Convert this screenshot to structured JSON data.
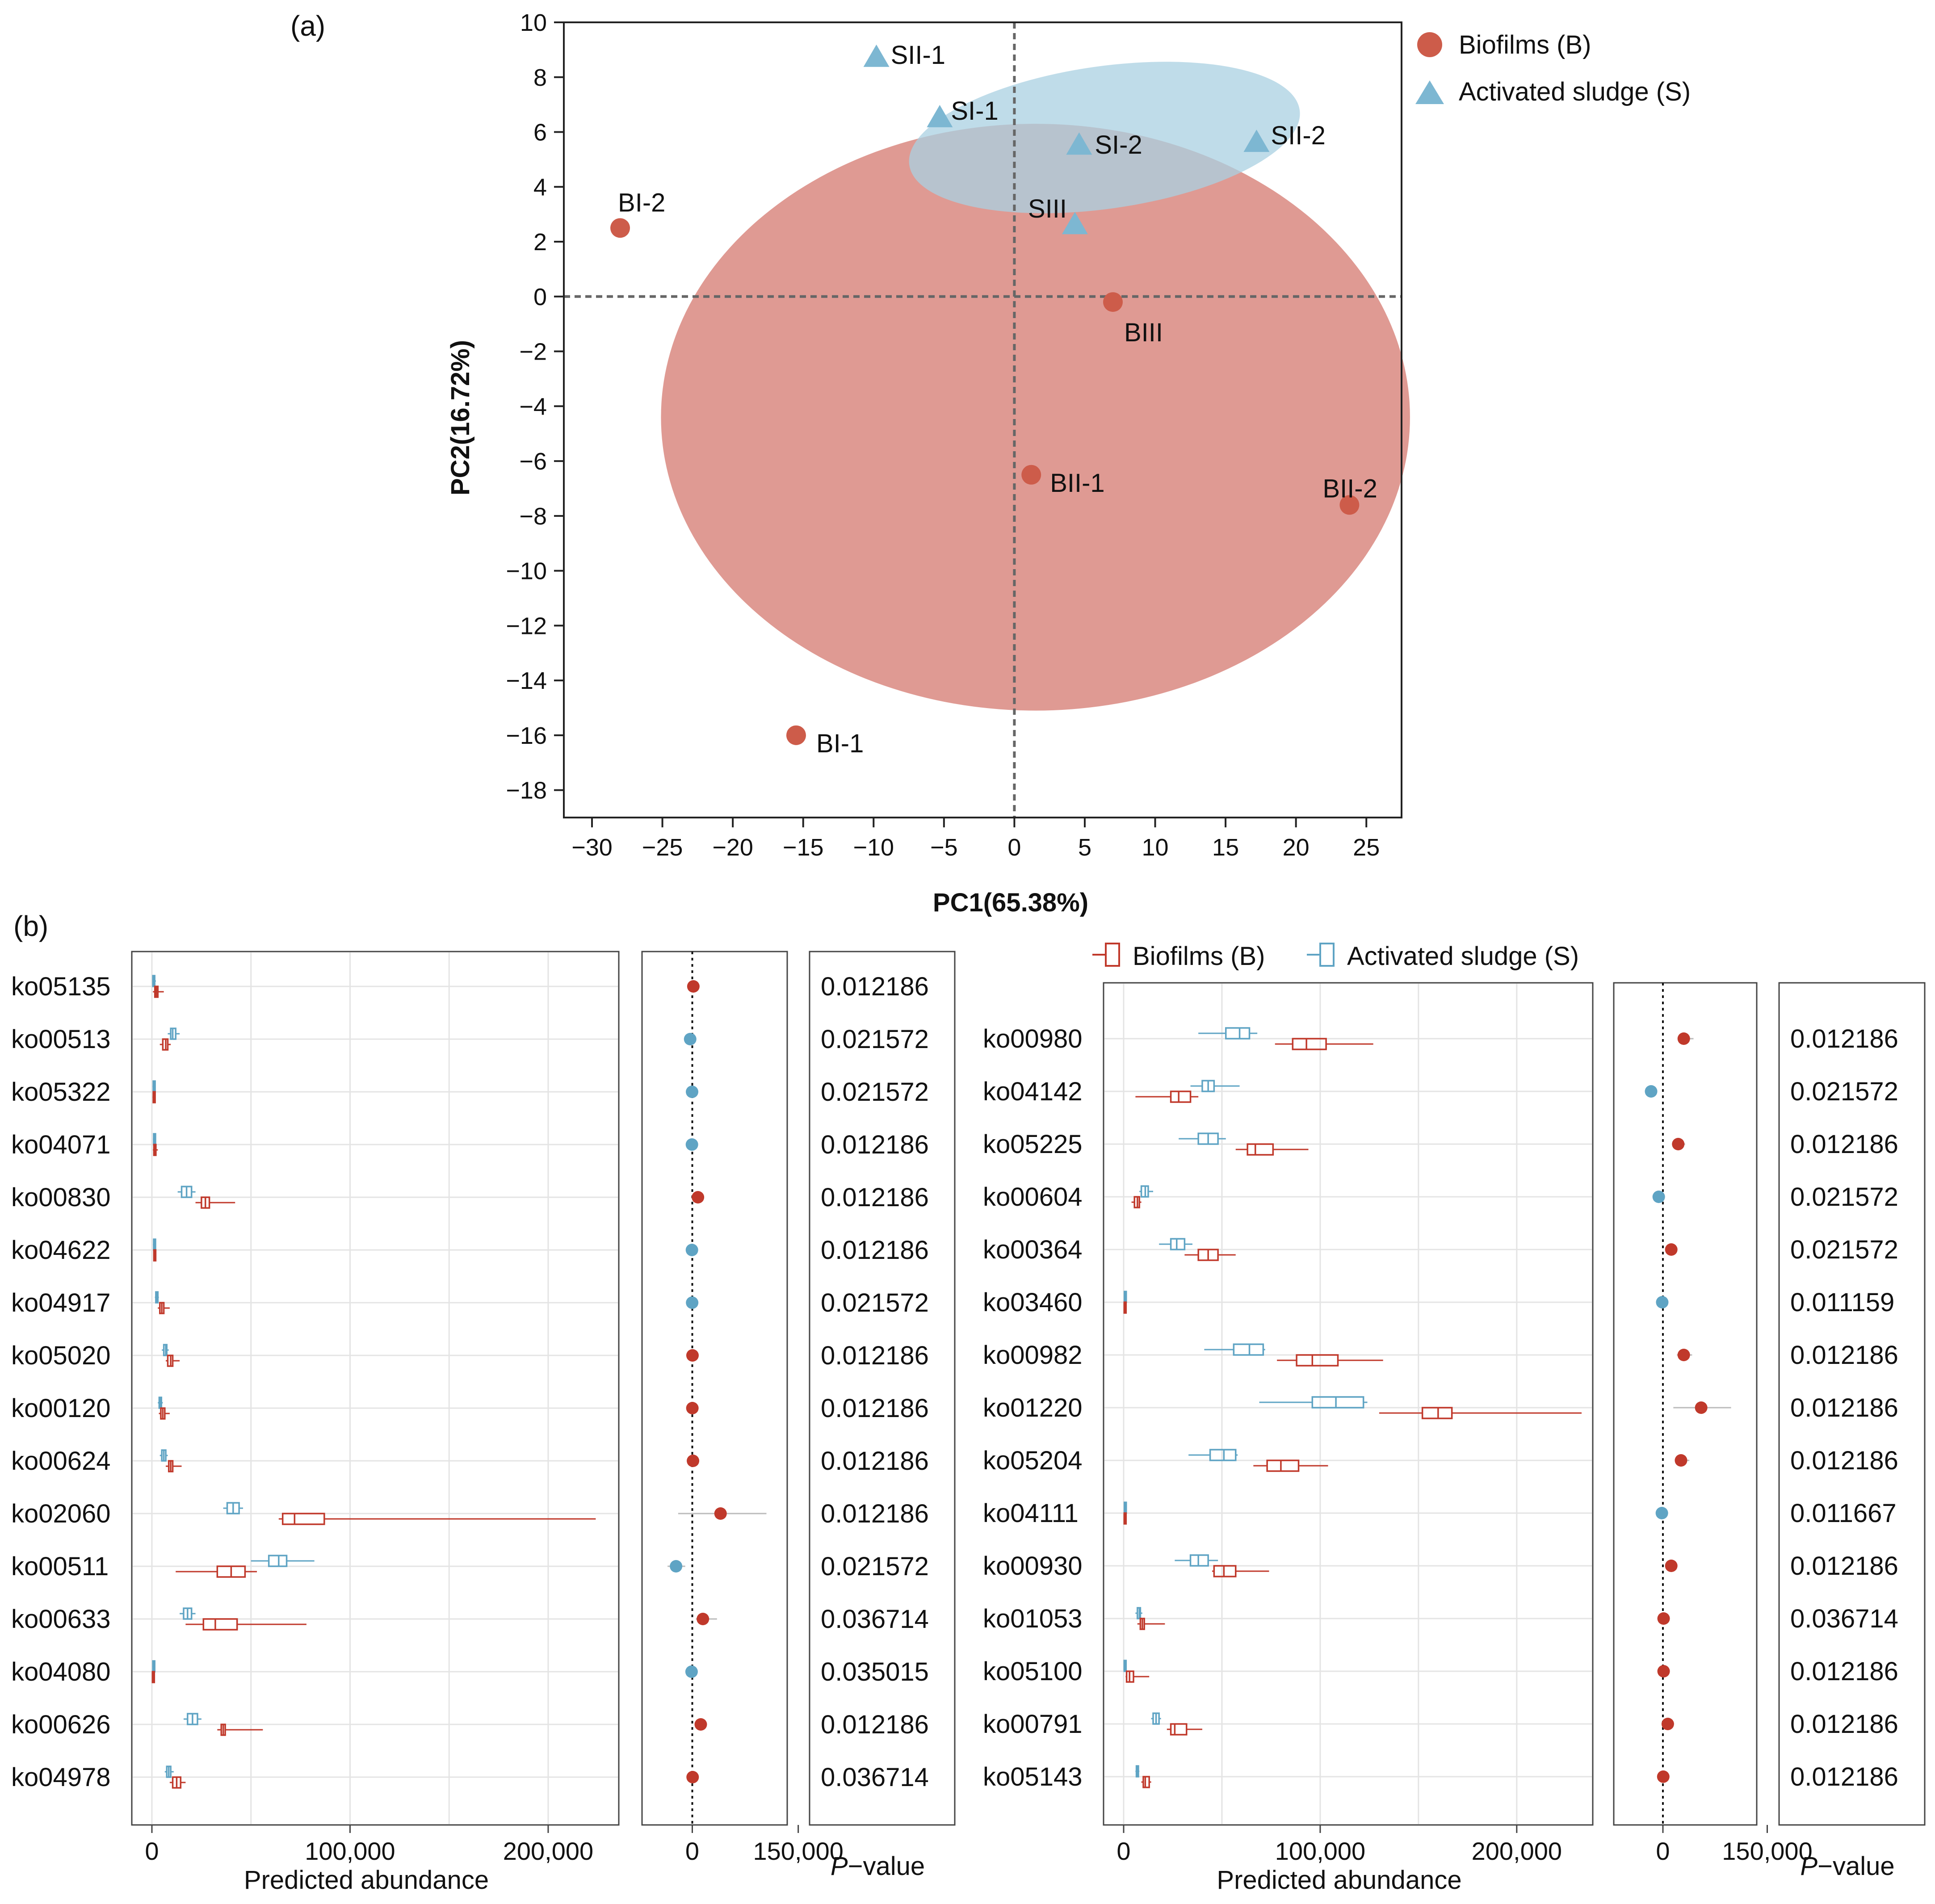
{
  "colors": {
    "biofilm": "#c0392b",
    "biofilm_fill": "#d98880",
    "sludge": "#5fa4c4",
    "sludge_fill": "#a9d0e2"
  },
  "chart_data": [
    {
      "panel": "(a)",
      "type": "scatter",
      "xlabel": "PC1(65.38%)",
      "ylabel": "PC2(16.72%)",
      "xlim": [
        -32,
        27.5
      ],
      "ylim": [
        -19,
        10
      ],
      "xticks": [
        -30,
        -25,
        -20,
        -15,
        -10,
        -5,
        0,
        5,
        10,
        15,
        20,
        25
      ],
      "yticks": [
        10,
        8,
        6,
        4,
        2,
        0,
        -2,
        -4,
        -6,
        -8,
        -10,
        -12,
        -14,
        -16,
        -18
      ],
      "xtick_labels": [
        "−30",
        "−25",
        "−20",
        "−15",
        "−10",
        "−5",
        "0",
        "5",
        "10",
        "15",
        "20",
        "25"
      ],
      "ytick_labels": [
        "10",
        "8",
        "6",
        "4",
        "2",
        "0",
        "−2",
        "−4",
        "−6",
        "−8",
        "−10",
        "−12",
        "−14",
        "−16",
        "−18"
      ],
      "legend": {
        "position": "top-right",
        "items": [
          "Biofilms (B)",
          "Activated sludge (S)"
        ]
      },
      "series": [
        {
          "name": "Biofilms (B)",
          "marker": "circle",
          "points": [
            {
              "label": "BI-1",
              "x": -15.5,
              "y": -16.0
            },
            {
              "label": "BI-2",
              "x": -28.0,
              "y": 2.5
            },
            {
              "label": "BII-1",
              "x": 1.2,
              "y": -6.5
            },
            {
              "label": "BII-2",
              "x": 23.8,
              "y": -7.6
            },
            {
              "label": "BIII",
              "x": 7.0,
              "y": -0.2
            }
          ],
          "ellipse": {
            "cx": 1.5,
            "cy": -4.4,
            "rx": 26.6,
            "ry": 10.7,
            "angle": 0
          }
        },
        {
          "name": "Activated sludge (S)",
          "marker": "triangle",
          "points": [
            {
              "label": "SI-1",
              "x": -5.3,
              "y": 6.5
            },
            {
              "label": "SI-2",
              "x": 4.6,
              "y": 5.5
            },
            {
              "label": "SII-1",
              "x": -9.8,
              "y": 8.7
            },
            {
              "label": "SII-2",
              "x": 17.2,
              "y": 5.6
            },
            {
              "label": "SIII",
              "x": 4.3,
              "y": 2.6
            }
          ],
          "ellipse": {
            "cx": 6.4,
            "cy": 5.8,
            "rx": 14.0,
            "ry": 2.6,
            "angle": -8
          }
        }
      ]
    },
    {
      "panel": "(b)",
      "type": "boxplot",
      "xlabel": "Predicted abundance",
      "xticks": [
        0,
        100000,
        200000
      ],
      "xtick_labels": [
        "0",
        "100,000",
        "200,000"
      ],
      "diff_ticks": [
        "0",
        "150,000"
      ],
      "pvalue_label": "P−value",
      "legend": [
        "Biofilms (B)",
        "Activated sludge (S)"
      ],
      "groups": [
        {
          "name": "left",
          "rows": [
            {
              "ko": "ko05135",
              "p": "0.012186",
              "diff": 1500,
              "ci": null,
              "B": [
                500,
                1500,
                2200,
                3000,
                6000
              ],
              "S": [
                200,
                500,
                800,
                1200,
                2000
              ]
            },
            {
              "ko": "ko00513",
              "p": "0.021572",
              "diff": -3000,
              "ci": null,
              "B": [
                4000,
                5500,
                7000,
                8000,
                9500
              ],
              "S": [
                8000,
                9500,
                10500,
                12000,
                14000
              ]
            },
            {
              "ko": "ko05322",
              "p": "0.021572",
              "diff": -300,
              "ci": null,
              "B": [
                300,
                700,
                1000,
                1400,
                1800
              ],
              "S": [
                300,
                700,
                1000,
                1300,
                1800
              ]
            },
            {
              "ko": "ko04071",
              "p": "0.012186",
              "diff": -500,
              "ci": null,
              "B": [
                500,
                1000,
                1500,
                2000,
                3000
              ],
              "S": [
                500,
                900,
                1300,
                1700,
                2000
              ]
            },
            {
              "ko": "ko00830",
              "p": "0.012186",
              "diff": 8000,
              "ci": null,
              "B": [
                22000,
                25000,
                27000,
                29000,
                42000
              ],
              "S": [
                13000,
                15000,
                17500,
                20000,
                22000
              ]
            },
            {
              "ko": "ko04622",
              "p": "0.012186",
              "diff": -500,
              "ci": null,
              "B": [
                700,
                1000,
                1300,
                1600,
                2000
              ],
              "S": [
                500,
                900,
                1200,
                1500,
                1800
              ]
            },
            {
              "ko": "ko04917",
              "p": "0.021572",
              "diff": -200,
              "ci": null,
              "B": [
                3000,
                4000,
                5000,
                6000,
                9000
              ],
              "S": [
                1500,
                2000,
                2500,
                3000,
                3500
              ]
            },
            {
              "ko": "ko05020",
              "p": "0.012186",
              "diff": 300,
              "ci": null,
              "B": [
                7000,
                8000,
                9500,
                10500,
                14000
              ],
              "S": [
                5000,
                6000,
                7000,
                7500,
                8500
              ]
            },
            {
              "ko": "ko00120",
              "p": "0.012186",
              "diff": 100,
              "ci": null,
              "B": [
                3500,
                4500,
                5500,
                6500,
                9000
              ],
              "S": [
                3000,
                3700,
                4200,
                4800,
                5500
              ]
            },
            {
              "ko": "ko00624",
              "p": "0.012186",
              "diff": 1000,
              "ci": null,
              "B": [
                7000,
                8500,
                9500,
                10500,
                15000
              ],
              "S": [
                4000,
                5000,
                6000,
                7000,
                8000
              ]
            },
            {
              "ko": "ko02060",
              "p": "0.012186",
              "diff": 40000,
              "ci": [
                -20000,
                105000
              ],
              "B": [
                64000,
                66000,
                72000,
                87000,
                224000
              ],
              "S": [
                36000,
                38000,
                41000,
                44000,
                46000
              ]
            },
            {
              "ko": "ko00511",
              "p": "0.021572",
              "diff": -23000,
              "ci": [
                -35000,
                -10000
              ],
              "B": [
                12000,
                33000,
                40000,
                47000,
                53000
              ],
              "S": [
                50000,
                59000,
                64000,
                68000,
                82000
              ]
            },
            {
              "ko": "ko00633",
              "p": "0.036714",
              "diff": 15000,
              "ci": [
                5000,
                35000
              ],
              "B": [
                17000,
                26000,
                32000,
                43000,
                78000
              ],
              "S": [
                14000,
                16000,
                18000,
                20000,
                22000
              ]
            },
            {
              "ko": "ko04080",
              "p": "0.035015",
              "diff": -1000,
              "ci": null,
              "B": [
                100,
                300,
                600,
                900,
                1300
              ],
              "S": [
                100,
                500,
                800,
                1100,
                1500
              ]
            },
            {
              "ko": "ko00626",
              "p": "0.012186",
              "diff": 12000,
              "ci": null,
              "B": [
                33000,
                35000,
                36000,
                37000,
                56000
              ],
              "S": [
                16000,
                18000,
                20500,
                23000,
                25000
              ]
            },
            {
              "ko": "ko04978",
              "p": "0.036714",
              "diff": 500,
              "ci": null,
              "B": [
                9000,
                10500,
                12500,
                14500,
                17000
              ],
              "S": [
                6500,
                7500,
                8500,
                9500,
                11000
              ]
            }
          ]
        },
        {
          "name": "right",
          "rows": [
            {
              "ko": "ko00980",
              "p": "0.012186",
              "diff": 30000,
              "ci": [
                22000,
                44000
              ],
              "B": [
                77000,
                86000,
                93000,
                103000,
                127000
              ],
              "S": [
                38000,
                52000,
                59000,
                64000,
                68000
              ]
            },
            {
              "ko": "ko04142",
              "p": "0.021572",
              "diff": -17000,
              "ci": [
                -24000,
                -13000
              ],
              "B": [
                6000,
                24000,
                28000,
                34000,
                38000
              ],
              "S": [
                34000,
                40000,
                43000,
                46000,
                59000
              ]
            },
            {
              "ko": "ko05225",
              "p": "0.012186",
              "diff": 22000,
              "ci": [
                16000,
                32000
              ],
              "B": [
                57000,
                63000,
                67000,
                76000,
                94000
              ],
              "S": [
                28000,
                38000,
                43000,
                48000,
                52000
              ]
            },
            {
              "ko": "ko00604",
              "p": "0.021572",
              "diff": -6000,
              "ci": null,
              "B": [
                4000,
                5500,
                7000,
                8000,
                9000
              ],
              "S": [
                8000,
                9000,
                11000,
                12500,
                15000
              ]
            },
            {
              "ko": "ko00364",
              "p": "0.021572",
              "diff": 12000,
              "ci": null,
              "B": [
                31000,
                38000,
                43000,
                48000,
                57000
              ],
              "S": [
                18000,
                24000,
                27000,
                31000,
                35000
              ]
            },
            {
              "ko": "ko03460",
              "p": "0.011159",
              "diff": -1000,
              "ci": null,
              "B": [
                0,
                300,
                600,
                900,
                1200
              ],
              "S": [
                0,
                400,
                700,
                1000,
                1400
              ]
            },
            {
              "ko": "ko00982",
              "p": "0.012186",
              "diff": 30000,
              "ci": [
                20000,
                42000
              ],
              "B": [
                78000,
                88000,
                96000,
                109000,
                132000
              ],
              "S": [
                41000,
                56000,
                64000,
                71000,
                72000
              ]
            },
            {
              "ko": "ko01220",
              "p": "0.012186",
              "diff": 55000,
              "ci": [
                15000,
                98000
              ],
              "B": [
                130000,
                152000,
                160000,
                167000,
                233000
              ],
              "S": [
                69000,
                96000,
                108000,
                122000,
                124000
              ]
            },
            {
              "ko": "ko05204",
              "p": "0.012186",
              "diff": 26000,
              "ci": [
                18000,
                38000
              ],
              "B": [
                66000,
                73000,
                80000,
                89000,
                104000
              ],
              "S": [
                33000,
                44000,
                51000,
                57000,
                58000
              ]
            },
            {
              "ko": "ko04111",
              "p": "0.011667",
              "diff": -1500,
              "ci": null,
              "B": [
                0,
                300,
                600,
                900,
                1200
              ],
              "S": [
                0,
                400,
                700,
                1000,
                1400
              ]
            },
            {
              "ko": "ko00930",
              "p": "0.012186",
              "diff": 12000,
              "ci": null,
              "B": [
                45000,
                46000,
                51000,
                57000,
                74000
              ],
              "S": [
                26000,
                34000,
                38000,
                43000,
                48000
              ]
            },
            {
              "ko": "ko01053",
              "p": "0.036714",
              "diff": 1000,
              "ci": null,
              "B": [
                7000,
                8500,
                9500,
                10500,
                21000
              ],
              "S": [
                6000,
                7000,
                8000,
                8500,
                9500
              ]
            },
            {
              "ko": "ko05100",
              "p": "0.012186",
              "diff": 1000,
              "ci": null,
              "B": [
                1000,
                1500,
                3000,
                5000,
                13000
              ],
              "S": [
                0,
                300,
                500,
                700,
                1000
              ]
            },
            {
              "ko": "ko00791",
              "p": "0.012186",
              "diff": 7000,
              "ci": null,
              "B": [
                22000,
                24000,
                26000,
                32000,
                40000
              ],
              "S": [
                14000,
                15000,
                16500,
                18000,
                19000
              ]
            },
            {
              "ko": "ko05143",
              "p": "0.012186",
              "diff": 500,
              "ci": null,
              "B": [
                9000,
                10000,
                11000,
                13000,
                14000
              ],
              "S": [
                6000,
                6500,
                7000,
                7500,
                8000
              ]
            }
          ]
        }
      ]
    }
  ]
}
